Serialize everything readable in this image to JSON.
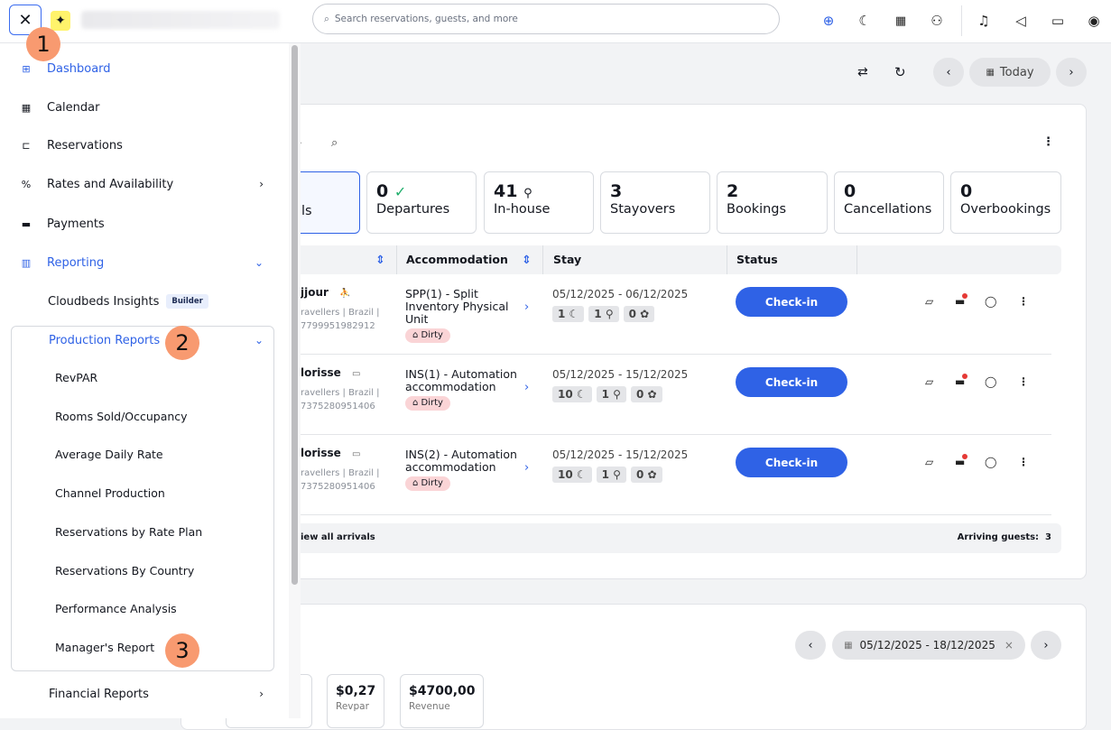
{
  "topbar": {
    "search_placeholder": "Search reservations, guests, and more",
    "close": "✕"
  },
  "colors": {
    "accent": "#2f62e6",
    "marker": "#f89a70",
    "dirty": "#fad4d6"
  },
  "sidebar": {
    "items": [
      {
        "label": "Dashboard",
        "icon": "grid-icon"
      },
      {
        "label": "Calendar",
        "icon": "calendar-icon"
      },
      {
        "label": "Reservations",
        "icon": "bed-icon"
      },
      {
        "label": "Rates and Availability",
        "icon": "percent-icon"
      },
      {
        "label": "Payments",
        "icon": "card-icon"
      },
      {
        "label": "Reporting",
        "icon": "chart-icon"
      }
    ],
    "insights": {
      "label": "Cloudbeds Insights",
      "badge": "Builder"
    },
    "production_reports": {
      "label": "Production Reports",
      "items": [
        "RevPAR",
        "Rooms Sold/Occupancy",
        "Average Daily Rate",
        "Channel Production",
        "Reservations by Rate Plan",
        "Reservations By Country",
        "Performance Analysis",
        "Manager's Report"
      ]
    },
    "financial_reports": "Financial Reports"
  },
  "markers": [
    "1",
    "2",
    "3"
  ],
  "main": {
    "today": "Today",
    "stats": [
      {
        "n": "",
        "l": "ls"
      },
      {
        "n": "0",
        "l": "Departures"
      },
      {
        "n": "41",
        "l": "In-house"
      },
      {
        "n": "3",
        "l": "Stayovers"
      },
      {
        "n": "2",
        "l": "Bookings"
      },
      {
        "n": "0",
        "l": "Cancellations"
      },
      {
        "n": "0",
        "l": "Overbookings"
      }
    ],
    "columns": {
      "accommodation": "Accommodation",
      "stay": "Stay",
      "status": "Status"
    },
    "rows": [
      {
        "name": "jjour",
        "meta1": "ravellers | Brazil |",
        "meta2": "7799951982912",
        "acc": "SPP(1) - Split Inventory Physical Unit",
        "dirty": "Dirty",
        "stay": "05/12/2025 - 06/12/2025",
        "nights": "1",
        "adults": "1",
        "kids": "0",
        "action": "Check-in"
      },
      {
        "name": "lorisse",
        "meta1": "ravellers | Brazil |",
        "meta2": "7375280951406",
        "acc": "INS(1) - Automation accommodation",
        "dirty": "Dirty",
        "stay": "05/12/2025 - 15/12/2025",
        "nights": "10",
        "adults": "1",
        "kids": "0",
        "action": "Check-in"
      },
      {
        "name": "lorisse",
        "meta1": "ravellers | Brazil |",
        "meta2": "7375280951406",
        "acc": "INS(2) - Automation accommodation",
        "dirty": "Dirty",
        "stay": "05/12/2025 - 15/12/2025",
        "nights": "10",
        "adults": "1",
        "kids": "0",
        "action": "Check-in"
      }
    ],
    "footer": {
      "link": "iew all arrivals",
      "label": "Arriving guests:",
      "count": "3"
    },
    "range": "05/12/2025 - 18/12/2025",
    "kpis": [
      {
        "n": "$0,27",
        "l": "Revpar"
      },
      {
        "n": "$4700,00",
        "l": "Revenue"
      }
    ]
  }
}
